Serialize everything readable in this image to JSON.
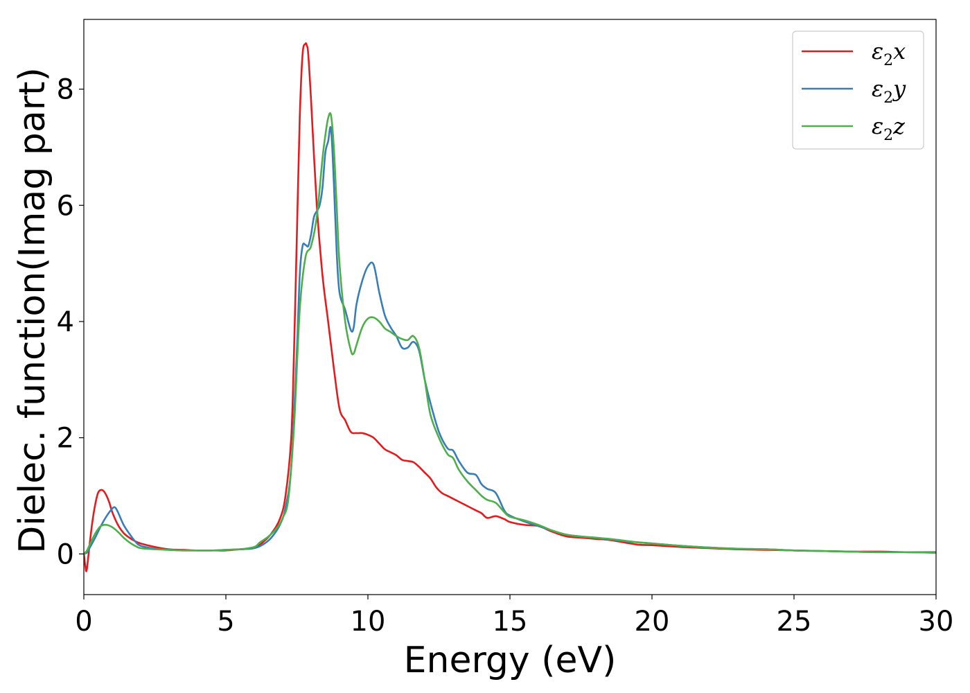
{
  "chart_data": {
    "type": "line",
    "xlabel": "Energy (eV)",
    "ylabel": "Dielec. function(Imag part)",
    "xlim": [
      0,
      30
    ],
    "ylim": [
      -0.7,
      9.2
    ],
    "xticks": [
      0,
      5,
      10,
      15,
      20,
      25,
      30
    ],
    "yticks": [
      0,
      2,
      4,
      6,
      8
    ],
    "grid": false,
    "legend_position": "top-right",
    "series": [
      {
        "name": "ε₂x",
        "label_base": "ε",
        "label_sub": "2",
        "label_var": "x",
        "color": "#e41a1c",
        "x": [
          0,
          0.05,
          0.1,
          0.2,
          0.3,
          0.4,
          0.5,
          0.6,
          0.7,
          0.8,
          0.9,
          1.0,
          1.2,
          1.4,
          1.6,
          1.8,
          2.0,
          2.5,
          3.0,
          3.5,
          4.0,
          4.5,
          5.0,
          5.5,
          6.0,
          6.3,
          6.6,
          6.9,
          7.1,
          7.3,
          7.4,
          7.5,
          7.6,
          7.7,
          7.8,
          7.85,
          7.9,
          8.0,
          8.2,
          8.4,
          8.6,
          8.8,
          9.0,
          9.2,
          9.4,
          9.6,
          9.8,
          10.0,
          10.2,
          10.4,
          10.6,
          10.8,
          11.0,
          11.2,
          11.4,
          11.6,
          11.8,
          12.0,
          12.2,
          12.4,
          12.6,
          12.8,
          13.0,
          13.4,
          13.8,
          14.0,
          14.2,
          14.5,
          14.8,
          15.0,
          15.5,
          16.0,
          16.5,
          17.0,
          17.5,
          18.0,
          18.5,
          19.0,
          19.5,
          20.0,
          21.0,
          22.0,
          23.0,
          24.0,
          25.0,
          26.0,
          27.0,
          28.0,
          29.0,
          30.0
        ],
        "y": [
          0.0,
          -0.2,
          -0.28,
          0.15,
          0.55,
          0.85,
          1.05,
          1.1,
          1.08,
          1.0,
          0.88,
          0.72,
          0.5,
          0.36,
          0.28,
          0.22,
          0.18,
          0.12,
          0.08,
          0.07,
          0.06,
          0.06,
          0.06,
          0.08,
          0.1,
          0.2,
          0.35,
          0.6,
          1.0,
          2.0,
          3.5,
          5.5,
          7.5,
          8.6,
          8.78,
          8.75,
          8.6,
          7.8,
          6.0,
          4.8,
          4.0,
          3.2,
          2.5,
          2.3,
          2.1,
          2.08,
          2.08,
          2.05,
          2.0,
          1.9,
          1.8,
          1.75,
          1.7,
          1.62,
          1.6,
          1.58,
          1.5,
          1.4,
          1.3,
          1.15,
          1.05,
          1.0,
          0.95,
          0.85,
          0.75,
          0.7,
          0.62,
          0.65,
          0.6,
          0.55,
          0.5,
          0.48,
          0.38,
          0.3,
          0.28,
          0.26,
          0.24,
          0.2,
          0.16,
          0.15,
          0.12,
          0.1,
          0.08,
          0.07,
          0.06,
          0.05,
          0.04,
          0.04,
          0.03,
          0.03
        ]
      },
      {
        "name": "ε₂y",
        "label_base": "ε",
        "label_sub": "2",
        "label_var": "y",
        "color": "#377eb8",
        "x": [
          0,
          0.1,
          0.2,
          0.4,
          0.6,
          0.8,
          1.0,
          1.1,
          1.2,
          1.4,
          1.6,
          1.8,
          2.0,
          2.5,
          3.0,
          3.5,
          4.0,
          4.5,
          5.0,
          5.5,
          6.0,
          6.3,
          6.6,
          6.9,
          7.1,
          7.3,
          7.5,
          7.6,
          7.7,
          7.8,
          7.9,
          8.0,
          8.1,
          8.2,
          8.3,
          8.4,
          8.5,
          8.6,
          8.7,
          8.8,
          8.9,
          9.0,
          9.2,
          9.4,
          9.5,
          9.6,
          9.8,
          10.0,
          10.2,
          10.4,
          10.6,
          10.8,
          11.0,
          11.2,
          11.4,
          11.6,
          11.8,
          12.0,
          12.2,
          12.5,
          12.8,
          13.0,
          13.2,
          13.5,
          13.8,
          14.0,
          14.2,
          14.5,
          14.8,
          15.0,
          15.5,
          16.0,
          16.5,
          17.0,
          17.5,
          18.0,
          18.5,
          19.0,
          19.5,
          20.0,
          21.0,
          22.0,
          23.0,
          24.0,
          25.0,
          26.0,
          27.0,
          28.0,
          29.0,
          30.0
        ],
        "y": [
          0.0,
          0.02,
          0.1,
          0.28,
          0.48,
          0.65,
          0.78,
          0.8,
          0.72,
          0.5,
          0.35,
          0.22,
          0.14,
          0.09,
          0.07,
          0.06,
          0.06,
          0.06,
          0.07,
          0.08,
          0.1,
          0.16,
          0.28,
          0.5,
          0.8,
          1.5,
          3.5,
          4.8,
          5.3,
          5.32,
          5.3,
          5.5,
          5.8,
          5.9,
          6.0,
          6.3,
          6.9,
          7.1,
          7.32,
          6.4,
          5.2,
          4.5,
          4.2,
          3.85,
          3.9,
          4.3,
          4.7,
          4.95,
          4.98,
          4.5,
          4.1,
          3.9,
          3.75,
          3.55,
          3.55,
          3.65,
          3.5,
          3.0,
          2.6,
          2.1,
          1.82,
          1.78,
          1.6,
          1.4,
          1.36,
          1.2,
          1.12,
          1.05,
          0.75,
          0.66,
          0.56,
          0.48,
          0.4,
          0.33,
          0.3,
          0.28,
          0.25,
          0.22,
          0.2,
          0.18,
          0.14,
          0.11,
          0.09,
          0.08,
          0.06,
          0.05,
          0.04,
          0.03,
          0.03,
          0.02
        ]
      },
      {
        "name": "ε₂z",
        "label_base": "ε",
        "label_sub": "2",
        "label_var": "z",
        "color": "#4daf4a",
        "x": [
          0,
          0.1,
          0.2,
          0.4,
          0.6,
          0.8,
          1.0,
          1.2,
          1.4,
          1.6,
          1.8,
          2.0,
          2.5,
          3.0,
          3.5,
          4.0,
          4.5,
          5.0,
          5.5,
          6.0,
          6.2,
          6.5,
          6.8,
          7.0,
          7.2,
          7.4,
          7.6,
          7.8,
          8.0,
          8.2,
          8.4,
          8.5,
          8.6,
          8.7,
          8.8,
          8.9,
          9.0,
          9.2,
          9.4,
          9.5,
          9.6,
          9.8,
          10.0,
          10.2,
          10.4,
          10.6,
          10.8,
          11.0,
          11.2,
          11.4,
          11.6,
          11.8,
          12.0,
          12.2,
          12.5,
          12.8,
          13.0,
          13.2,
          13.5,
          13.8,
          14.0,
          14.2,
          14.5,
          14.8,
          15.0,
          15.5,
          16.0,
          16.5,
          17.0,
          17.5,
          18.0,
          18.5,
          19.0,
          19.5,
          20.0,
          21.0,
          22.0,
          23.0,
          24.0,
          25.0,
          26.0,
          27.0,
          28.0,
          29.0,
          30.0
        ],
        "y": [
          0.0,
          0.05,
          0.15,
          0.35,
          0.48,
          0.5,
          0.46,
          0.38,
          0.28,
          0.2,
          0.14,
          0.1,
          0.08,
          0.07,
          0.06,
          0.06,
          0.06,
          0.07,
          0.08,
          0.12,
          0.2,
          0.3,
          0.45,
          0.62,
          0.95,
          2.2,
          4.2,
          5.1,
          5.3,
          5.8,
          6.8,
          7.2,
          7.5,
          7.55,
          7.0,
          6.0,
          5.0,
          4.0,
          3.5,
          3.45,
          3.6,
          3.9,
          4.05,
          4.07,
          4.0,
          3.88,
          3.82,
          3.75,
          3.7,
          3.68,
          3.75,
          3.55,
          3.0,
          2.4,
          2.0,
          1.72,
          1.65,
          1.45,
          1.25,
          1.1,
          1.0,
          0.93,
          0.88,
          0.72,
          0.64,
          0.58,
          0.5,
          0.4,
          0.33,
          0.3,
          0.28,
          0.26,
          0.23,
          0.2,
          0.18,
          0.14,
          0.11,
          0.09,
          0.08,
          0.06,
          0.05,
          0.04,
          0.03,
          0.03,
          0.02
        ]
      }
    ]
  }
}
